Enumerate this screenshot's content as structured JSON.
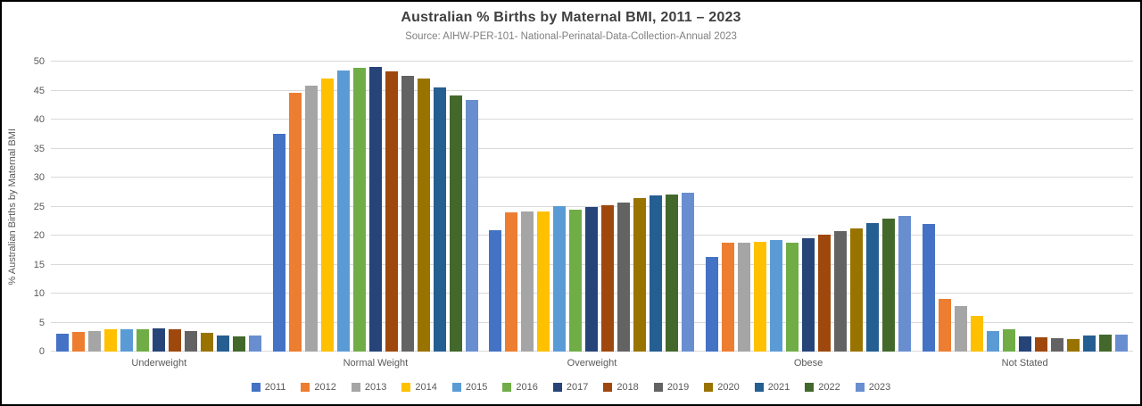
{
  "chart_data": {
    "type": "bar",
    "title": "Australian % Births by Maternal BMI, 2011 – 2023",
    "subtitle": "Source: AIHW-PER-101- National-Perinatal-Data-Collection-Annual 2023",
    "xlabel": "",
    "ylabel": "% Australian Births by Maternal BMI",
    "ylim": [
      0,
      50
    ],
    "yticks": [
      0,
      5,
      10,
      15,
      20,
      25,
      30,
      35,
      40,
      45,
      50
    ],
    "grid": true,
    "legend_position": "bottom",
    "background_color": "#ffffff",
    "gridline_color": "#d9d9d9",
    "text_color": "#595959",
    "categories": [
      "Underweight",
      "Normal Weight",
      "Overweight",
      "Obese",
      "Not Stated"
    ],
    "series": [
      {
        "name": "2011",
        "color": "#4472C4",
        "values": [
          3.1,
          37.5,
          20.9,
          16.3,
          22.0
        ]
      },
      {
        "name": "2012",
        "color": "#ED7D31",
        "values": [
          3.4,
          44.6,
          24.0,
          18.7,
          9.1
        ]
      },
      {
        "name": "2013",
        "color": "#A5A5A5",
        "values": [
          3.5,
          45.8,
          24.2,
          18.7,
          7.8
        ]
      },
      {
        "name": "2014",
        "color": "#FFC000",
        "values": [
          3.9,
          47.1,
          24.1,
          19.0,
          6.1
        ]
      },
      {
        "name": "2015",
        "color": "#5B9BD5",
        "values": [
          3.9,
          48.4,
          25.1,
          19.2,
          3.5
        ]
      },
      {
        "name": "2016",
        "color": "#70AD47",
        "values": [
          3.9,
          49.0,
          24.5,
          18.8,
          3.8
        ]
      },
      {
        "name": "2017",
        "color": "#264478",
        "values": [
          4.0,
          49.1,
          24.9,
          19.6,
          2.6
        ]
      },
      {
        "name": "2018",
        "color": "#9E480E",
        "values": [
          3.9,
          48.3,
          25.3,
          20.1,
          2.4
        ]
      },
      {
        "name": "2019",
        "color": "#636363",
        "values": [
          3.5,
          47.6,
          25.7,
          20.7,
          2.3
        ]
      },
      {
        "name": "2020",
        "color": "#997300",
        "values": [
          3.2,
          47.1,
          26.5,
          21.2,
          2.1
        ]
      },
      {
        "name": "2021",
        "color": "#255E91",
        "values": [
          2.8,
          45.5,
          27.0,
          22.1,
          2.7
        ]
      },
      {
        "name": "2022",
        "color": "#43682B",
        "values": [
          2.6,
          44.2,
          27.1,
          23.0,
          2.9
        ]
      },
      {
        "name": "2023",
        "color": "#698ED0",
        "values": [
          2.8,
          43.4,
          27.4,
          23.4,
          3.0
        ]
      }
    ]
  }
}
